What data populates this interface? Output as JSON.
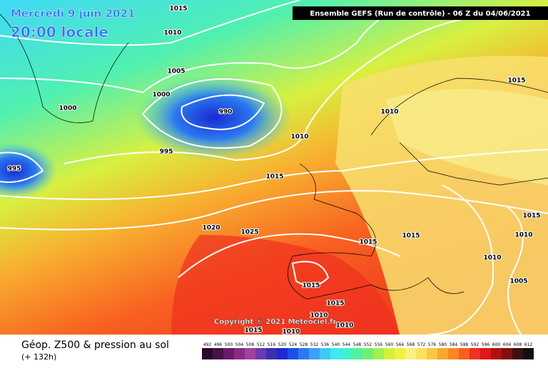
{
  "header": {
    "date": "Mercredi 9 juin 2021",
    "time": "20:00 locale",
    "run": "Ensemble GEFS  (Run de contrôle)  -  06 Z du 04/06/2021",
    "copyright": "Copyright © 2021 Meteociel.fr"
  },
  "footer": {
    "title": "Géop. Z500 & pression au sol",
    "lead": "(+ 132h)"
  },
  "isobar_labels": [
    1015,
    1010,
    1005,
    1000,
    1000,
    990,
    995,
    995,
    1010,
    1015,
    1010,
    1015,
    1020,
    1025,
    1015,
    1015,
    1015,
    1010,
    1010,
    1005,
    1015,
    1015,
    1010,
    1010,
    1015,
    1010
  ],
  "colorbar": [
    {
      "label": 492,
      "color": "#2a0a2a"
    },
    {
      "label": 496,
      "color": "#4a1048"
    },
    {
      "label": 500,
      "color": "#6a1a68"
    },
    {
      "label": 504,
      "color": "#8a2a88"
    },
    {
      "label": 508,
      "color": "#a040a0"
    },
    {
      "label": 512,
      "color": "#6a3ab0"
    },
    {
      "label": 516,
      "color": "#3a30b0"
    },
    {
      "label": 520,
      "color": "#1a2ad0"
    },
    {
      "label": 524,
      "color": "#1a50e8"
    },
    {
      "label": 528,
      "color": "#2a78f0"
    },
    {
      "label": 532,
      "color": "#3aa0f8"
    },
    {
      "label": 536,
      "color": "#40c8f8"
    },
    {
      "label": 540,
      "color": "#40e8f0"
    },
    {
      "label": 544,
      "color": "#40f0c8"
    },
    {
      "label": 548,
      "color": "#50f0a0"
    },
    {
      "label": 552,
      "color": "#70f070"
    },
    {
      "label": 556,
      "color": "#a0f050"
    },
    {
      "label": 560,
      "color": "#d0f040"
    },
    {
      "label": 564,
      "color": "#f0f040"
    },
    {
      "label": 568,
      "color": "#f8f080"
    },
    {
      "label": 572,
      "color": "#f8e060"
    },
    {
      "label": 576,
      "color": "#f8c840"
    },
    {
      "label": 580,
      "color": "#f8a830"
    },
    {
      "label": 584,
      "color": "#f88820"
    },
    {
      "label": 588,
      "color": "#f86020"
    },
    {
      "label": 592,
      "color": "#f03020"
    },
    {
      "label": 596,
      "color": "#e01818"
    },
    {
      "label": 600,
      "color": "#b01010"
    },
    {
      "label": 604,
      "color": "#801010"
    },
    {
      "label": 608,
      "color": "#401010"
    },
    {
      "label": 612,
      "color": "#101010"
    }
  ]
}
